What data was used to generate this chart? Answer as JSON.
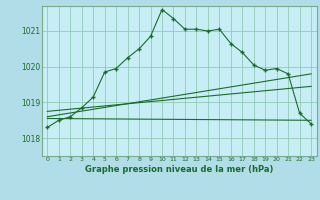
{
  "title": "Graphe pression niveau de la mer (hPa)",
  "bg_color": "#b0dde8",
  "plot_bg_color": "#c8eef5",
  "grid_color": "#90c8b8",
  "line_color": "#1a6b2a",
  "spine_color": "#7aaa8a",
  "xlim": [
    -0.5,
    23.5
  ],
  "ylim": [
    1017.5,
    1021.7
  ],
  "yticks": [
    1018,
    1019,
    1020,
    1021
  ],
  "xticks": [
    0,
    1,
    2,
    3,
    4,
    5,
    6,
    7,
    8,
    9,
    10,
    11,
    12,
    13,
    14,
    15,
    16,
    17,
    18,
    19,
    20,
    21,
    22,
    23
  ],
  "main_line_x": [
    0,
    1,
    2,
    3,
    4,
    5,
    6,
    7,
    8,
    9,
    10,
    11,
    12,
    13,
    14,
    15,
    16,
    17,
    18,
    19,
    20,
    21,
    22,
    23
  ],
  "main_line_y": [
    1018.3,
    1018.5,
    1018.6,
    1018.85,
    1019.15,
    1019.85,
    1019.95,
    1020.25,
    1020.5,
    1020.85,
    1021.6,
    1021.35,
    1021.05,
    1021.05,
    1021.0,
    1021.05,
    1020.65,
    1020.4,
    1020.05,
    1019.9,
    1019.95,
    1019.8,
    1018.7,
    1018.4
  ],
  "line2_x": [
    0,
    23
  ],
  "line2_y": [
    1018.6,
    1019.8
  ],
  "line3_x": [
    0,
    23
  ],
  "line3_y": [
    1018.75,
    1019.45
  ],
  "flat_line_x": [
    0,
    23
  ],
  "flat_line_y": [
    1018.55,
    1018.5
  ]
}
